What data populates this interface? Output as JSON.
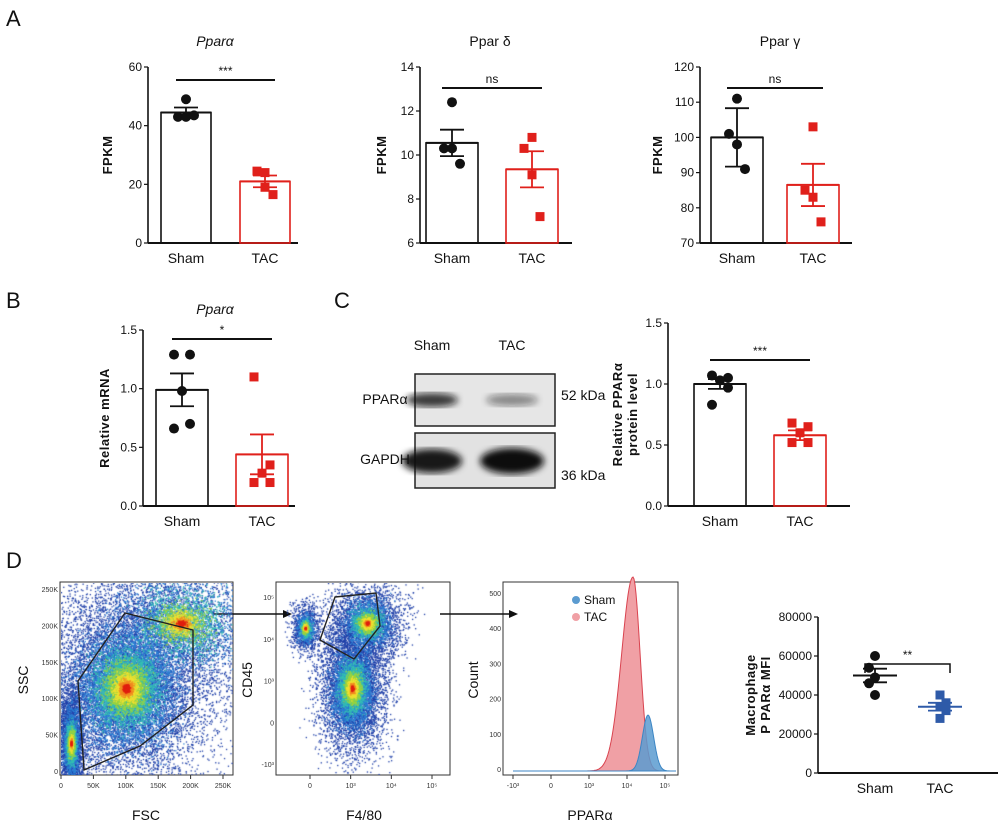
{
  "panel_letters": [
    "A",
    "B",
    "C",
    "D"
  ],
  "colors": {
    "sham": "#111111",
    "tac_red": "#e0201b",
    "tac_blue": "#2e5aa8",
    "hist_sham": "#5b9bd0",
    "hist_tac": "#f0a0a5"
  },
  "chart_data": [
    {
      "id": "A1",
      "type": "bar",
      "title": "Pparα",
      "title_italic": true,
      "ylabel": "FPKM",
      "categories": [
        "Sham",
        "TAC"
      ],
      "ylim": [
        0,
        60
      ],
      "yticks": [
        "0",
        "20",
        "40",
        "60"
      ],
      "series": [
        {
          "mean": 44.5,
          "sem": 1.7,
          "points": [
            49,
            43,
            43,
            43.5
          ]
        },
        {
          "mean": 21,
          "sem": 2,
          "points": [
            24,
            24.5,
            19,
            16.5
          ]
        }
      ],
      "significance": "***"
    },
    {
      "id": "A2",
      "type": "bar",
      "title": "Ppar δ",
      "ylabel": "FPKM",
      "categories": [
        "Sham",
        "TAC"
      ],
      "ylim": [
        6,
        14
      ],
      "yticks": [
        "6",
        "8",
        "10",
        "12",
        "14"
      ],
      "series": [
        {
          "mean": 10.55,
          "sem": 0.6,
          "points": [
            12.4,
            10.3,
            10.3,
            9.6
          ]
        },
        {
          "mean": 9.35,
          "sem": 0.82,
          "points": [
            10.8,
            10.3,
            9.1,
            7.2
          ]
        }
      ],
      "significance": "ns"
    },
    {
      "id": "A3",
      "type": "bar",
      "title": "Ppar γ",
      "ylabel": "FPKM",
      "categories": [
        "Sham",
        "TAC"
      ],
      "ylim": [
        70,
        120
      ],
      "yticks": [
        "70",
        "80",
        "90",
        "100",
        "110",
        "120"
      ],
      "series": [
        {
          "mean": 100,
          "sem": 8.3,
          "points": [
            111,
            101,
            98,
            91
          ]
        },
        {
          "mean": 86.5,
          "sem": 6,
          "points": [
            103,
            85,
            83,
            76
          ]
        }
      ],
      "significance": "ns"
    },
    {
      "id": "B",
      "type": "bar",
      "title": "Pparα",
      "title_italic": true,
      "ylabel": "Relative mRNA",
      "categories": [
        "Sham",
        "TAC"
      ],
      "ylim": [
        0,
        1.5
      ],
      "yticks": [
        "0.0",
        "0.5",
        "1.0",
        "1.5"
      ],
      "series": [
        {
          "mean": 0.99,
          "sem": 0.14,
          "points": [
            1.29,
            1.29,
            0.98,
            0.7,
            0.66
          ]
        },
        {
          "mean": 0.44,
          "sem": 0.17,
          "points": [
            1.1,
            0.35,
            0.28,
            0.2,
            0.2
          ]
        }
      ],
      "significance": "*"
    },
    {
      "id": "C",
      "type": "bar",
      "ylabel": [
        "Relative PPARα",
        "protein level"
      ],
      "categories": [
        "Sham",
        "TAC"
      ],
      "ylim": [
        0,
        1.5
      ],
      "yticks": [
        "0.0",
        "0.5",
        "1.0",
        "1.5"
      ],
      "series": [
        {
          "mean": 1.0,
          "sem": 0.04,
          "points": [
            1.07,
            1.05,
            1.03,
            0.97,
            0.83
          ]
        },
        {
          "mean": 0.58,
          "sem": 0.04,
          "points": [
            0.68,
            0.65,
            0.6,
            0.52,
            0.52
          ]
        }
      ],
      "significance": "***"
    },
    {
      "id": "D",
      "type": "scatter",
      "ylabel": [
        "Macrophage",
        "P PARα MFI"
      ],
      "categories": [
        "Sham",
        "TAC"
      ],
      "ylim": [
        0,
        80000
      ],
      "yticks": [
        "0",
        "20000",
        "40000",
        "60000",
        "80000"
      ],
      "series": [
        {
          "mean": 50000,
          "sem": 3500,
          "points": [
            60000,
            54000,
            49000,
            46000,
            40000
          ]
        },
        {
          "mean": 34000,
          "sem": 2000,
          "points": [
            40000,
            36000,
            34000,
            32000,
            28000
          ]
        }
      ],
      "significance": "**"
    }
  ],
  "western_blot": {
    "lanes": [
      "Sham",
      "TAC"
    ],
    "rows": [
      {
        "label": "PPARα",
        "size": "52 kDa",
        "intensity": [
          0.8,
          0.45
        ]
      },
      {
        "label": "GAPDH",
        "size": "36 kDa",
        "intensity": [
          0.95,
          1.0
        ]
      }
    ]
  },
  "flow": {
    "plot1": {
      "xlabel": "FSC",
      "ylabel": "SSC",
      "xticks": [
        "0",
        "50K",
        "100K",
        "150K",
        "200K",
        "250K"
      ],
      "yticks": [
        "0",
        "50K",
        "100K",
        "150K",
        "200K",
        "250K"
      ]
    },
    "plot2": {
      "xlabel": "F4/80",
      "ylabel": "CD45",
      "xticks": [
        "0",
        "10³",
        "10⁴",
        "10⁵"
      ],
      "yticks": [
        "-10³",
        "0",
        "10³",
        "10⁴",
        "10⁵"
      ]
    },
    "plot3": {
      "xlabel": "PPARα",
      "ylabel": "Count",
      "xticks": [
        "-10³",
        "0",
        "10³",
        "10⁴",
        "10⁵"
      ],
      "yticks": [
        "0",
        "100",
        "200",
        "300",
        "400",
        "500"
      ],
      "legend": [
        "Sham",
        "TAC"
      ]
    }
  }
}
